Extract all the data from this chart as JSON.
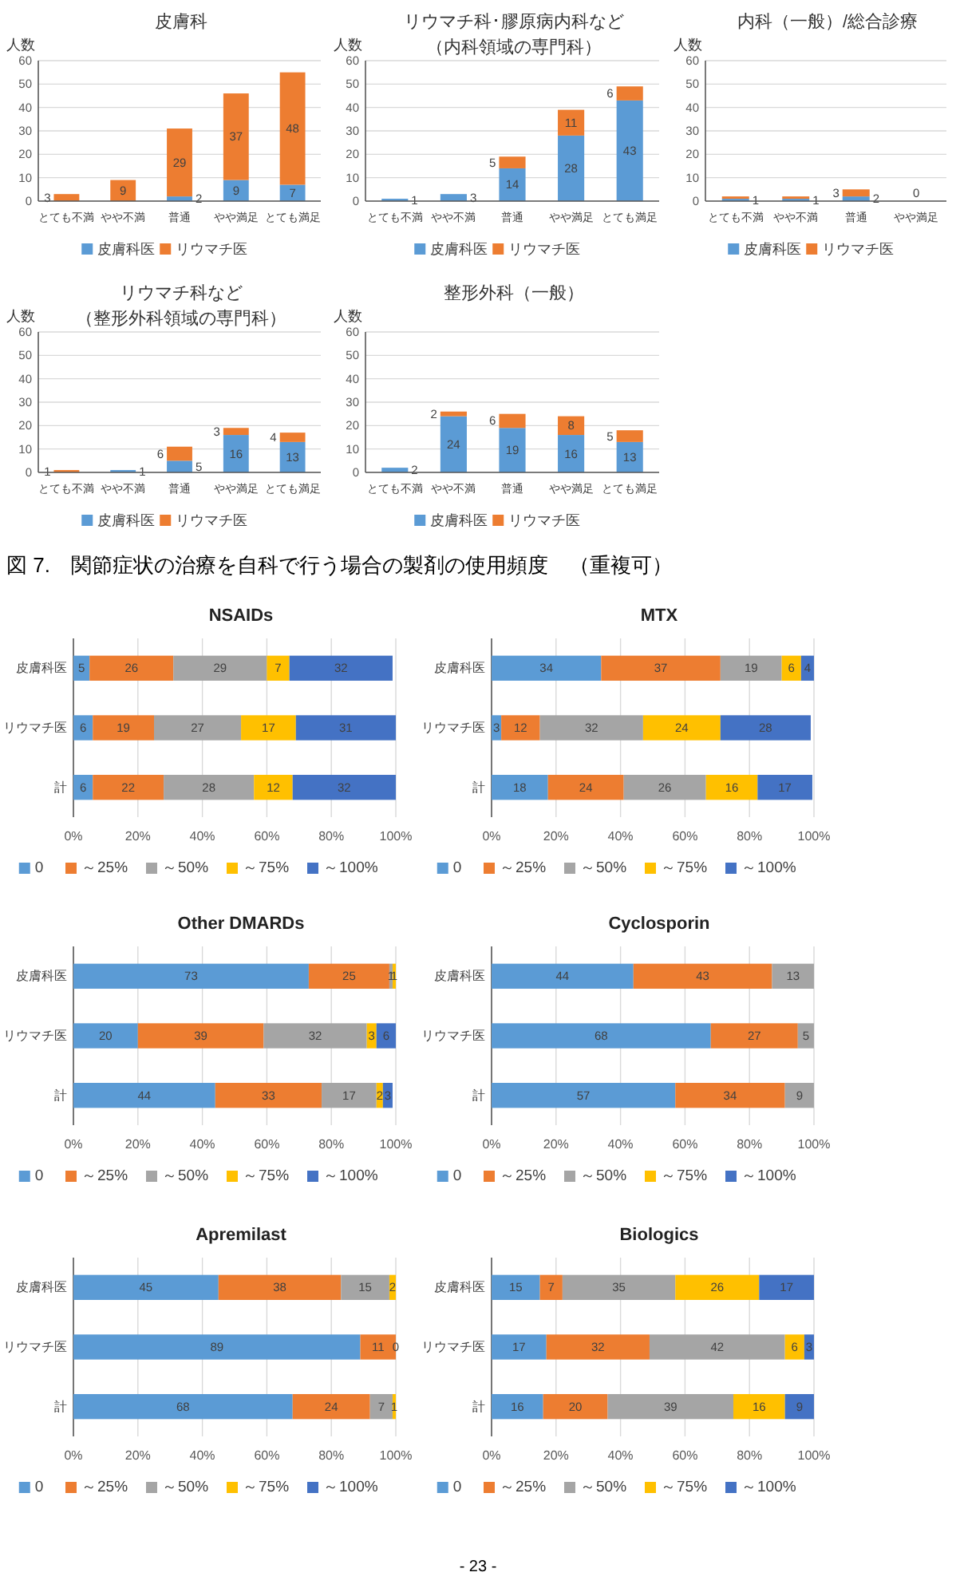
{
  "chart_data": [
    {
      "type": "bar",
      "stacked": true,
      "title": "皮膚科",
      "ylabel": "人数",
      "categories": [
        "とても不満",
        "やや不満",
        "普通",
        "やや満足",
        "とても満足"
      ],
      "series": [
        {
          "name": "皮膚科医",
          "color": "#5b9bd5",
          "values": [
            0,
            0,
            2,
            9,
            7
          ],
          "value_labels": [
            null,
            null,
            "2",
            "9",
            "7"
          ]
        },
        {
          "name": "リウマチ医",
          "color": "#ed7d31",
          "values": [
            3,
            9,
            29,
            37,
            48
          ],
          "value_labels": [
            "3",
            "9",
            "29",
            "37",
            "48"
          ]
        }
      ],
      "ylim": [
        0,
        60
      ],
      "yticks": [
        0,
        10,
        20,
        30,
        40,
        50,
        60
      ],
      "grid": "y",
      "legend": "bottom"
    },
    {
      "type": "bar",
      "stacked": true,
      "title": "リウマチ科･膠原病内科など",
      "subtitle": "（内科領域の専門科）",
      "ylabel": "人数",
      "categories": [
        "とても不満",
        "やや不満",
        "普通",
        "やや満足",
        "とても満足"
      ],
      "series": [
        {
          "name": "皮膚科医",
          "color": "#5b9bd5",
          "values": [
            1,
            3,
            14,
            28,
            43
          ],
          "value_labels": [
            "1",
            "3",
            "14",
            "28",
            "43"
          ]
        },
        {
          "name": "リウマチ医",
          "color": "#ed7d31",
          "values": [
            0,
            0,
            5,
            11,
            6
          ],
          "value_labels": [
            null,
            null,
            "5",
            "11",
            "6"
          ]
        }
      ],
      "ylim": [
        0,
        60
      ],
      "yticks": [
        0,
        10,
        20,
        30,
        40,
        50,
        60
      ],
      "grid": "y",
      "legend": "bottom"
    },
    {
      "type": "bar",
      "stacked": true,
      "title": "内科（一般）/総合診療",
      "ylabel": "人数",
      "categories": [
        "とても不満",
        "やや不満",
        "普通",
        "やや満足"
      ],
      "series": [
        {
          "name": "皮膚科医",
          "color": "#5b9bd5",
          "values": [
            1,
            1,
            2,
            0
          ],
          "value_labels": [
            "1",
            "1",
            "2",
            "0"
          ]
        },
        {
          "name": "リウマチ医",
          "color": "#ed7d31",
          "values": [
            1,
            1,
            3,
            0
          ],
          "value_labels": [
            null,
            null,
            "3",
            null
          ]
        }
      ],
      "ylim": [
        0,
        60
      ],
      "yticks": [
        0,
        10,
        20,
        30,
        40,
        50,
        60
      ],
      "grid": "y",
      "legend": "bottom"
    },
    {
      "type": "bar",
      "stacked": true,
      "title": "リウマチ科など",
      "subtitle": "（整形外科領域の専門科）",
      "ylabel": "人数",
      "categories": [
        "とても不満",
        "やや不満",
        "普通",
        "やや満足",
        "とても満足"
      ],
      "series": [
        {
          "name": "皮膚科医",
          "color": "#5b9bd5",
          "values": [
            0,
            1,
            5,
            16,
            13
          ],
          "value_labels": [
            null,
            "1",
            "5",
            "16",
            "13"
          ]
        },
        {
          "name": "リウマチ医",
          "color": "#ed7d31",
          "values": [
            1,
            0,
            6,
            3,
            4
          ],
          "value_labels": [
            "1",
            null,
            "6",
            "3",
            "4"
          ]
        }
      ],
      "ylim": [
        0,
        60
      ],
      "yticks": [
        0,
        10,
        20,
        30,
        40,
        50,
        60
      ],
      "grid": "y",
      "legend": "bottom"
    },
    {
      "type": "bar",
      "stacked": true,
      "title": "整形外科（一般）",
      "ylabel": "人数",
      "categories": [
        "とても不満",
        "やや不満",
        "普通",
        "やや満足",
        "とても満足"
      ],
      "series": [
        {
          "name": "皮膚科医",
          "color": "#5b9bd5",
          "values": [
            2,
            24,
            19,
            16,
            13
          ],
          "value_labels": [
            "2",
            "24",
            "19",
            "16",
            "13"
          ]
        },
        {
          "name": "リウマチ医",
          "color": "#ed7d31",
          "values": [
            0,
            2,
            6,
            8,
            5
          ],
          "value_labels": [
            null,
            "2",
            "6",
            "8",
            "5"
          ]
        }
      ],
      "ylim": [
        0,
        60
      ],
      "yticks": [
        0,
        10,
        20,
        30,
        40,
        50,
        60
      ],
      "grid": "y",
      "legend": "bottom"
    },
    {
      "type": "other",
      "annotations": [
        "図 7.　関節症状の治療を自科で行う場合の製剤の使用頻度　（重複可）"
      ]
    },
    {
      "type": "bar",
      "stacked": true,
      "orientation": "horizontal",
      "title": "NSAIDs",
      "categories": [
        "皮膚科医",
        "リウマチ医",
        "計"
      ],
      "series": [
        {
          "name": "0",
          "color": "#5b9bd5",
          "values": [
            5,
            6,
            6
          ]
        },
        {
          "name": "～25%",
          "color": "#ed7d31",
          "values": [
            26,
            19,
            22
          ]
        },
        {
          "name": "～50%",
          "color": "#a5a5a5",
          "values": [
            29,
            27,
            28
          ]
        },
        {
          "name": "～75%",
          "color": "#ffc000",
          "values": [
            7,
            17,
            12
          ]
        },
        {
          "name": "～100%",
          "color": "#4472c4",
          "values": [
            32,
            31,
            32
          ]
        }
      ],
      "xlim": [
        0,
        100
      ],
      "xticks": [
        {
          "value": 0,
          "label": "0%"
        },
        {
          "value": 20,
          "label": "20%"
        },
        {
          "value": 40,
          "label": "40%"
        },
        {
          "value": 60,
          "label": "60%"
        },
        {
          "value": 80,
          "label": "80%"
        },
        {
          "value": 100,
          "label": "100%"
        }
      ],
      "grid": "x",
      "legend": "bottom",
      "data_labels": true
    },
    {
      "type": "bar",
      "stacked": true,
      "orientation": "horizontal",
      "title": "MTX",
      "categories": [
        "皮膚科医",
        "リウマチ医",
        "計"
      ],
      "series": [
        {
          "name": "0",
          "color": "#5b9bd5",
          "values": [
            34,
            3,
            17.5
          ],
          "value_labels": [
            "34",
            "3",
            "18"
          ]
        },
        {
          "name": "～25%",
          "color": "#ed7d31",
          "values": [
            37,
            12,
            23.5
          ],
          "value_labels": [
            "37",
            "12",
            "24"
          ]
        },
        {
          "name": "～50%",
          "color": "#a5a5a5",
          "values": [
            19,
            32,
            25.5
          ],
          "value_labels": [
            "19",
            "32",
            "26"
          ]
        },
        {
          "name": "～75%",
          "color": "#ffc000",
          "values": [
            6,
            24,
            16
          ],
          "value_labels": [
            "6",
            "24",
            "16"
          ]
        },
        {
          "name": "～100%",
          "color": "#4472c4",
          "values": [
            4,
            28,
            17
          ],
          "value_labels": [
            "4",
            "28",
            "17"
          ]
        }
      ],
      "xlim": [
        0,
        100
      ],
      "xticks": [
        {
          "value": 0,
          "label": "0%"
        },
        {
          "value": 20,
          "label": "20%"
        },
        {
          "value": 40,
          "label": "40%"
        },
        {
          "value": 60,
          "label": "60%"
        },
        {
          "value": 80,
          "label": "80%"
        },
        {
          "value": 100,
          "label": "100%"
        }
      ],
      "grid": "x",
      "legend": "bottom"
    },
    {
      "type": "bar",
      "stacked": true,
      "orientation": "horizontal",
      "title": "Other DMARDs",
      "categories": [
        "皮膚科医",
        "リウマチ医",
        "計"
      ],
      "series": [
        {
          "name": "0",
          "color": "#5b9bd5",
          "values": [
            73,
            20,
            44
          ],
          "value_labels": [
            "73",
            "20",
            "44"
          ]
        },
        {
          "name": "～25%",
          "color": "#ed7d31",
          "values": [
            25,
            39,
            33
          ],
          "value_labels": [
            "25",
            "39",
            "33"
          ]
        },
        {
          "name": "～50%",
          "color": "#a5a5a5",
          "values": [
            1,
            32,
            17
          ],
          "value_labels": [
            "1",
            "32",
            "17"
          ]
        },
        {
          "name": "～75%",
          "color": "#ffc000",
          "values": [
            1,
            3,
            2
          ],
          "value_labels": [
            "1",
            "3",
            "2"
          ]
        },
        {
          "name": "～100%",
          "color": "#4472c4",
          "values": [
            0,
            6,
            3
          ],
          "value_labels": [
            null,
            "6",
            "3"
          ]
        }
      ],
      "xlim": [
        0,
        100
      ],
      "xticks": [
        {
          "value": 0,
          "label": "0%"
        },
        {
          "value": 20,
          "label": "20%"
        },
        {
          "value": 40,
          "label": "40%"
        },
        {
          "value": 60,
          "label": "60%"
        },
        {
          "value": 80,
          "label": "80%"
        },
        {
          "value": 100,
          "label": "100%"
        }
      ],
      "grid": "x",
      "legend": "bottom"
    },
    {
      "type": "bar",
      "stacked": true,
      "orientation": "horizontal",
      "title": "Cyclosporin",
      "categories": [
        "皮膚科医",
        "リウマチ医",
        "計"
      ],
      "series": [
        {
          "name": "0",
          "color": "#5b9bd5",
          "values": [
            44,
            68,
            57
          ],
          "value_labels": [
            "44",
            "68",
            "57"
          ]
        },
        {
          "name": "～25%",
          "color": "#ed7d31",
          "values": [
            43,
            27,
            34
          ],
          "value_labels": [
            "43",
            "27",
            "34"
          ]
        },
        {
          "name": "～50%",
          "color": "#a5a5a5",
          "values": [
            13,
            5,
            9
          ],
          "value_labels": [
            "13",
            "5",
            "9"
          ]
        },
        {
          "name": "～75%",
          "color": "#ffc000",
          "values": [
            0,
            0,
            0
          ],
          "value_labels": [
            null,
            null,
            null
          ]
        },
        {
          "name": "～100%",
          "color": "#4472c4",
          "values": [
            0,
            0,
            0
          ],
          "value_labels": [
            null,
            null,
            null
          ]
        }
      ],
      "xlim": [
        0,
        100
      ],
      "xticks": [
        {
          "value": 0,
          "label": "0%"
        },
        {
          "value": 20,
          "label": "20%"
        },
        {
          "value": 40,
          "label": "40%"
        },
        {
          "value": 60,
          "label": "60%"
        },
        {
          "value": 80,
          "label": "80%"
        },
        {
          "value": 100,
          "label": "100%"
        }
      ],
      "grid": "x",
      "legend": "bottom"
    },
    {
      "type": "bar",
      "stacked": true,
      "orientation": "horizontal",
      "title": "Apremilast",
      "categories": [
        "皮膚科医",
        "リウマチ医",
        "計"
      ],
      "series": [
        {
          "name": "0",
          "color": "#5b9bd5",
          "values": [
            45,
            89,
            68
          ],
          "value_labels": [
            "45",
            "89",
            "68"
          ]
        },
        {
          "name": "～25%",
          "color": "#ed7d31",
          "values": [
            38,
            11,
            24
          ],
          "value_labels": [
            "38",
            "11",
            "24"
          ]
        },
        {
          "name": "～50%",
          "color": "#a5a5a5",
          "values": [
            15,
            0,
            7
          ],
          "value_labels": [
            "15",
            "0",
            "7"
          ]
        },
        {
          "name": "～75%",
          "color": "#ffc000",
          "values": [
            2,
            0,
            1
          ],
          "value_labels": [
            "2",
            null,
            "1"
          ]
        },
        {
          "name": "～100%",
          "color": "#4472c4",
          "values": [
            0,
            0,
            0
          ],
          "value_labels": [
            null,
            null,
            null
          ]
        }
      ],
      "xlim": [
        0,
        100
      ],
      "xticks": [
        {
          "value": 0,
          "label": "0%"
        },
        {
          "value": 20,
          "label": "20%"
        },
        {
          "value": 40,
          "label": "40%"
        },
        {
          "value": 60,
          "label": "60%"
        },
        {
          "value": 80,
          "label": "80%"
        },
        {
          "value": 100,
          "label": "100%"
        }
      ],
      "grid": "x",
      "legend": "bottom"
    },
    {
      "type": "bar",
      "stacked": true,
      "orientation": "horizontal",
      "title": "Biologics",
      "categories": [
        "皮膚科医",
        "リウマチ医",
        "計"
      ],
      "series": [
        {
          "name": "0",
          "color": "#5b9bd5",
          "values": [
            15,
            17,
            16
          ]
        },
        {
          "name": "～25%",
          "color": "#ed7d31",
          "values": [
            7,
            32,
            20
          ]
        },
        {
          "name": "～50%",
          "color": "#a5a5a5",
          "values": [
            35,
            42,
            39
          ]
        },
        {
          "name": "～75%",
          "color": "#ffc000",
          "values": [
            26,
            6,
            16
          ]
        },
        {
          "name": "～100%",
          "color": "#4472c4",
          "values": [
            17,
            3,
            9
          ]
        }
      ],
      "xlim": [
        0,
        100
      ],
      "xticks": [
        {
          "value": 0,
          "label": "0%"
        },
        {
          "value": 20,
          "label": "20%"
        },
        {
          "value": 40,
          "label": "40%"
        },
        {
          "value": 60,
          "label": "60%"
        },
        {
          "value": 80,
          "label": "80%"
        },
        {
          "value": 100,
          "label": "100%"
        }
      ],
      "grid": "x",
      "legend": "bottom",
      "data_labels": true
    },
    {
      "type": "other",
      "annotations": [
        "- 23 -"
      ]
    }
  ]
}
